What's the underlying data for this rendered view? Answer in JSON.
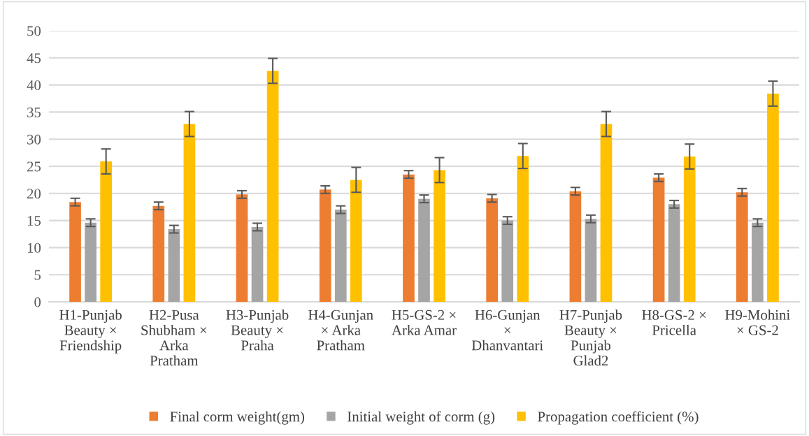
{
  "chart_data": {
    "type": "bar",
    "categories": [
      "H1-Punjab\nBeauty ×\nFriendship",
      "H2-Pusa\nShubham ×\nArka\nPratham",
      "H3-Punjab\nBeauty ×\nPraha",
      "H4-Gunjan\n× Arka\nPratham",
      "H5-GS-2 ×\nArka Amar",
      "H6-Gunjan\n×\nDhanvantari",
      "H7-Punjab\nBeauty ×\nPunjab\nGlad2",
      "H8-GS-2 ×\nPricella",
      "H9-Mohini\n× GS-2"
    ],
    "series": [
      {
        "name": "Final corm weight(gm)",
        "color": "#ed7d31",
        "values": [
          18.4,
          17.7,
          19.8,
          20.7,
          23.5,
          19.1,
          20.4,
          22.9,
          20.2
        ],
        "errors": [
          0.7,
          0.7,
          0.7,
          0.7,
          0.7,
          0.7,
          0.7,
          0.7,
          0.7
        ]
      },
      {
        "name": "Initial weight of corm (g)",
        "color": "#a5a5a5",
        "values": [
          14.6,
          13.4,
          13.8,
          17.0,
          19.0,
          15.0,
          15.3,
          18.0,
          14.6
        ],
        "errors": [
          0.7,
          0.7,
          0.7,
          0.7,
          0.7,
          0.7,
          0.7,
          0.7,
          0.7
        ]
      },
      {
        "name": "Propagation coefficient (%)",
        "color": "#ffc000",
        "values": [
          25.9,
          32.8,
          42.6,
          22.5,
          24.3,
          26.9,
          32.8,
          26.8,
          38.4
        ],
        "errors": [
          2.3,
          2.3,
          2.3,
          2.3,
          2.3,
          2.3,
          2.3,
          2.3,
          2.3
        ]
      }
    ],
    "ylim": [
      0,
      50
    ],
    "yticks": [
      0,
      5,
      10,
      15,
      20,
      25,
      30,
      35,
      40,
      45,
      50
    ],
    "grid": "y",
    "legend": "bottom"
  }
}
